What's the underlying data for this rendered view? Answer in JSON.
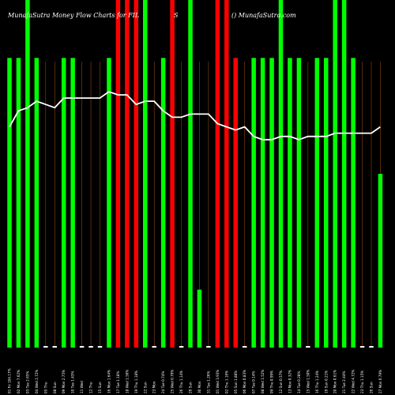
{
  "header": {
    "left": "MunafaSutra  Money Flow  Charts for FIL",
    "mid": "S",
    "right": "() MunafaSutra.com"
  },
  "colors": {
    "background": "#000000",
    "up": "#00ff00",
    "down": "#ff0000",
    "neutral": "#ffffff",
    "line": "#ffffff",
    "grid": "#8b4513"
  },
  "chart_data": {
    "type": "bar",
    "title": "MunafaSutra  Money Flow  Charts for FIL",
    "categories": [
      "01 Fri 104.17%",
      "02 Mon 7.62%",
      "03 Tue 2.65%",
      "04 Wed 2.72%",
      "05 Thu",
      "08 Sun",
      "09 Mon 2.75%",
      "10 Tue 1.43%",
      "11 Wed",
      "12 Thu",
      "15 Sun",
      "16 Mon 1.64%",
      "17 Tue 1.18%",
      "18 Wed 1.50%",
      "19 Thu 1.18%",
      "22 Sun",
      "23 Mon",
      "24 Tue 0.74%",
      "25 Wed 0.79%",
      "26 Thu 1.14%",
      "29 Sun",
      "30 Mon",
      "31 Tue 1.26%",
      "01 Wed 3.93%",
      "02 Thu 1.16%",
      "05 Sun 1.88%",
      "06 Mon 0.83%",
      "07 Tue 0.14%",
      "08 Wed 1.52%",
      "09 Thu 0.99%",
      "12 Sun 0.57%",
      "13 Mon 0.32%",
      "14 Tue 0.28%",
      "15 Wed 1.50%",
      "16 Thu 1.24%",
      "19 Sun 0.21%",
      "20 Mon 0.61%",
      "21 Tue 2.44%",
      "22 Wed 4.72%",
      "23 Thu 1.15%",
      "26 Sun",
      "27 Mon 0.79%"
    ],
    "values": [
      100,
      100,
      120,
      100,
      0,
      0,
      100,
      100,
      0,
      0,
      0,
      100,
      120,
      120,
      120,
      120,
      0,
      100,
      120,
      0,
      120,
      20,
      0,
      120,
      120,
      100,
      0,
      100,
      100,
      100,
      120,
      100,
      100,
      0,
      100,
      100,
      120,
      120,
      100,
      0,
      0,
      60
    ],
    "directions": [
      "up",
      "up",
      "up",
      "up",
      "neutral",
      "neutral",
      "up",
      "up",
      "neutral",
      "neutral",
      "neutral",
      "up",
      "down",
      "down",
      "down",
      "up",
      "neutral",
      "up",
      "down",
      "neutral",
      "up",
      "up",
      "neutral",
      "down",
      "down",
      "down",
      "neutral",
      "up",
      "up",
      "up",
      "up",
      "up",
      "up",
      "neutral",
      "up",
      "up",
      "up",
      "up",
      "up",
      "neutral",
      "neutral",
      "up"
    ],
    "line": [
      69,
      74,
      75,
      77,
      76,
      75,
      78,
      78,
      78,
      78,
      78,
      80,
      79,
      79,
      76,
      77,
      77,
      74,
      72,
      72,
      73,
      73,
      73,
      70,
      69,
      68,
      69,
      66,
      65,
      65,
      66,
      66,
      65,
      66,
      66,
      66,
      67,
      67,
      67,
      67,
      67,
      69
    ],
    "ylim": [
      0,
      120
    ],
    "grid": "vertical",
    "legend": "none"
  }
}
